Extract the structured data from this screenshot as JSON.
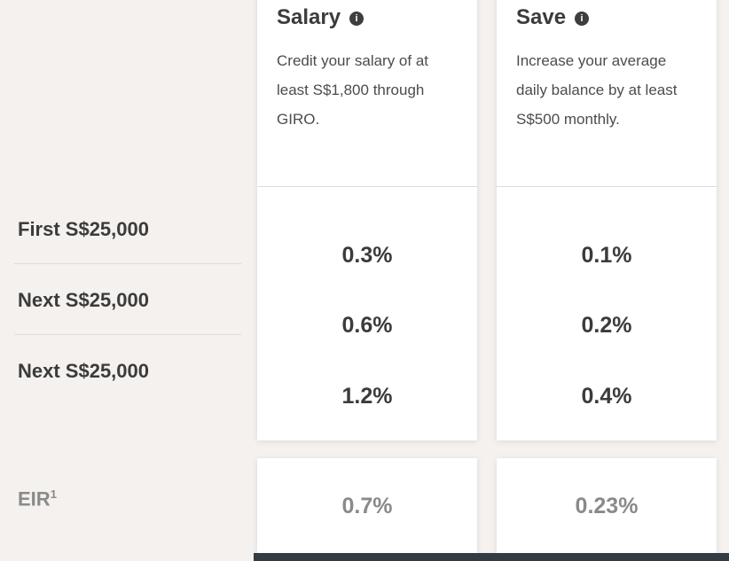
{
  "table": {
    "row_labels": [
      "First S$25,000",
      "Next S$25,000",
      "Next S$25,000"
    ],
    "eir": {
      "label": "EIR",
      "superscript": "1"
    },
    "columns": [
      {
        "title": "Salary",
        "description": "Credit your salary of at least S$1,800 through GIRO.",
        "values": [
          "0.3%",
          "0.6%",
          "1.2%"
        ],
        "eir_value": "0.7%"
      },
      {
        "title": "Save",
        "description": "Increase your average daily balance by at least S$500 monthly.",
        "values": [
          "0.1%",
          "0.2%",
          "0.4%"
        ],
        "eir_value": "0.23%"
      }
    ]
  },
  "icons": {
    "info_glyph": "i"
  },
  "colors": {
    "background": "#f4f1ee",
    "card": "#ffffff",
    "text_dark": "#3b3b3b",
    "text_gray": "#8a8a8a",
    "divider": "#dcdcdc",
    "row_border": "#e1dcd7",
    "bottom_bar": "#333c42",
    "info_icon_bg": "#3e3e3e"
  }
}
